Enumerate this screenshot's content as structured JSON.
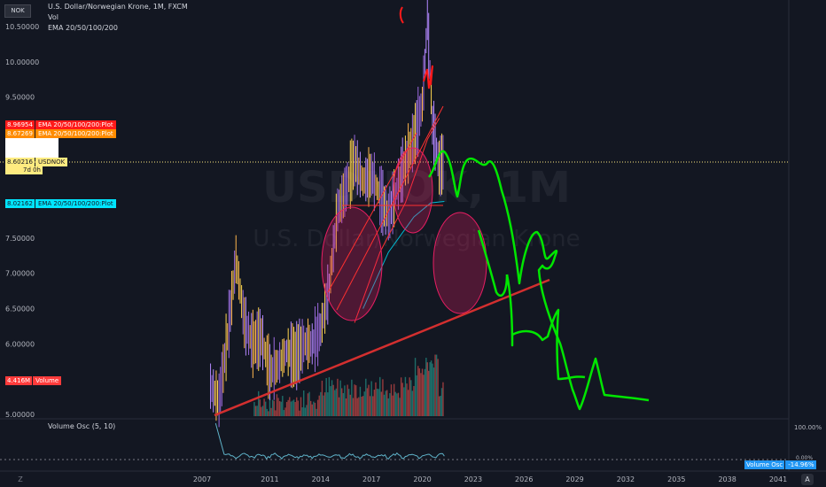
{
  "header": {
    "symbol_badge": "NOK",
    "title": "U.S. Dollar/Norwegian Krone, 1M, FXCM",
    "vol_label": "Vol",
    "ema_label": "EMA 20/50/100/200"
  },
  "watermark": {
    "symbol": "USDNOK, 1M",
    "name": "U.S. Dollar/Norwegian Krone"
  },
  "price_axis": {
    "ticks": [
      "10.50000",
      "10.00000",
      "9.50000",
      "7.50000",
      "7.00000",
      "6.50000",
      "6.00000",
      "5.00000"
    ],
    "tick_values": [
      10.5,
      10.0,
      9.5,
      7.5,
      7.0,
      6.5,
      6.0,
      5.0
    ]
  },
  "labels": {
    "ema_red": {
      "value": "8.96954",
      "text": "EMA 20/50/100/200:Plot",
      "color": "#ff1a1a"
    },
    "ema_orange": {
      "value": "8.67269",
      "text": "EMA 20/50/100/200:Plot",
      "color": "#ff8c00"
    },
    "price": {
      "value": "8.60216",
      "text": "USDNOK",
      "countdown": "7d 0h",
      "color": "#ffeb80"
    },
    "ema_cyan": {
      "value": "8.02162",
      "text": "EMA 20/50/100/200:Plot",
      "color": "#00e5ff"
    },
    "volume": {
      "value": "4.416M",
      "text": "Volume",
      "color": "#ff3b3b"
    }
  },
  "oscillator": {
    "label": "Volume Osc (5, 10)",
    "scale_top": "100.00%",
    "scale_zero": "0.00%",
    "current_label": "Volume Osc",
    "current_value": "-14.96%"
  },
  "time_axis": {
    "ticks": [
      "2007",
      "2011",
      "2014",
      "2017",
      "2020",
      "2023",
      "2026",
      "2029",
      "2032",
      "2035",
      "2038",
      "2041"
    ]
  },
  "buttons": {
    "auto": "A",
    "zoom": "Z"
  },
  "chart_data": {
    "type": "line",
    "title": "U.S. Dollar/Norwegian Krone, 1M, FXCM",
    "xlim": [
      2007,
      2041
    ],
    "ylim": [
      5.0,
      10.8
    ],
    "series": [
      {
        "name": "USDNOK",
        "x": [
          2007.5,
          2008.0,
          2008.5,
          2009.0,
          2009.5,
          2010.0,
          2010.5,
          2011.0,
          2011.5,
          2012.0,
          2012.5,
          2013.0,
          2013.5,
          2014.0,
          2014.5,
          2015.0,
          2015.5,
          2016.0,
          2016.5,
          2017.0,
          2017.5,
          2018.0,
          2018.5,
          2019.0,
          2019.5,
          2020.0,
          2020.3,
          2020.6,
          2021.0,
          2021.3
        ],
        "y": [
          5.4,
          5.2,
          6.1,
          7.2,
          6.3,
          6.0,
          6.1,
          5.6,
          5.7,
          5.9,
          5.8,
          6.0,
          6.0,
          6.2,
          6.8,
          7.9,
          8.2,
          8.6,
          8.3,
          8.4,
          8.1,
          7.8,
          8.2,
          8.6,
          8.9,
          9.4,
          10.6,
          9.1,
          8.5,
          8.6
        ]
      },
      {
        "name": "EMA 20/50/100/200",
        "x": [
          2016.5,
          2018.0,
          2019.5,
          2020.5,
          2021.3
        ],
        "y": [
          6.5,
          7.3,
          7.8,
          8.0,
          8.02
        ]
      }
    ],
    "volume_value": "4.416M",
    "volume_osc_value": "-14.96%"
  }
}
